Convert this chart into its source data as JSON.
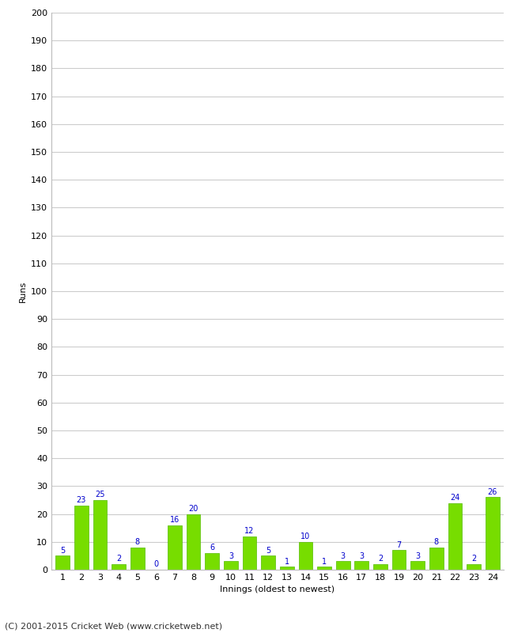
{
  "innings": [
    1,
    2,
    3,
    4,
    5,
    6,
    7,
    8,
    9,
    10,
    11,
    12,
    13,
    14,
    15,
    16,
    17,
    18,
    19,
    20,
    21,
    22,
    23,
    24
  ],
  "runs": [
    5,
    23,
    25,
    2,
    8,
    0,
    16,
    20,
    6,
    3,
    12,
    5,
    1,
    10,
    1,
    3,
    3,
    2,
    7,
    3,
    8,
    24,
    2,
    26
  ],
  "bar_color": "#77dd00",
  "bar_edgecolor": "#55bb00",
  "label_color": "#0000cc",
  "xlabel": "Innings (oldest to newest)",
  "ylabel": "Runs",
  "ylim": [
    0,
    200
  ],
  "yticks": [
    0,
    10,
    20,
    30,
    40,
    50,
    60,
    70,
    80,
    90,
    100,
    110,
    120,
    130,
    140,
    150,
    160,
    170,
    180,
    190,
    200
  ],
  "footer": "(C) 2001-2015 Cricket Web (www.cricketweb.net)",
  "background_color": "#ffffff",
  "grid_color": "#cccccc",
  "label_fontsize": 7,
  "axis_label_fontsize": 8,
  "tick_fontsize": 8,
  "footer_fontsize": 8
}
